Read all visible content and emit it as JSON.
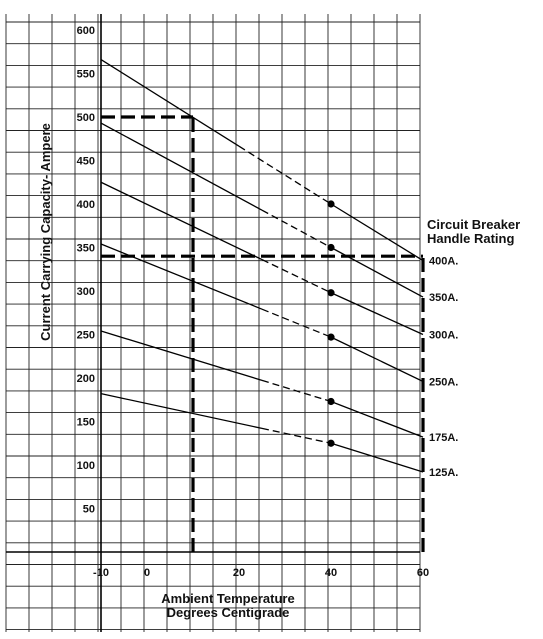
{
  "chart_data": {
    "type": "line",
    "xlabel_line1": "Ambient Temperature",
    "xlabel_line2": "Degrees Centigrade",
    "ylabel": "Current Carrying Capacity- Ampere",
    "legend_title_line1": "Circuit Breaker",
    "legend_title_line2": "Handle Rating",
    "x_ticks": [
      "-10",
      "0",
      "20",
      "40",
      "60"
    ],
    "x_tick_values": [
      -10,
      0,
      20,
      40,
      60
    ],
    "y_ticks": [
      "50",
      "100",
      "150",
      "200",
      "250",
      "300",
      "350",
      "400",
      "450",
      "500",
      "550",
      "600"
    ],
    "y_tick_values": [
      50,
      100,
      150,
      200,
      250,
      300,
      350,
      400,
      450,
      500,
      550,
      600
    ],
    "xlim": [
      -10,
      60
    ],
    "ylim": [
      0,
      620
    ],
    "grid": true,
    "series": [
      {
        "name": "400A.",
        "x": [
          -10,
          40,
          60
        ],
        "y": [
          566,
          400,
          335
        ],
        "dashed_from_x": 20
      },
      {
        "name": "350A.",
        "x": [
          -10,
          40,
          60
        ],
        "y": [
          493,
          350,
          293
        ],
        "dashed_from_x": 25
      },
      {
        "name": "300A.",
        "x": [
          -10,
          40,
          60
        ],
        "y": [
          425,
          298,
          250
        ],
        "dashed_from_x": 25
      },
      {
        "name": "250A.",
        "x": [
          -10,
          40,
          60
        ],
        "y": [
          354,
          247,
          196
        ],
        "dashed_from_x": 25
      },
      {
        "name": "175A.",
        "x": [
          -10,
          40,
          60
        ],
        "y": [
          254,
          173,
          132
        ],
        "dashed_from_x": 25
      },
      {
        "name": "125A.",
        "x": [
          -10,
          40,
          60
        ],
        "y": [
          182,
          125,
          92
        ],
        "dashed_from_x": 25
      }
    ],
    "markers": [
      {
        "x": 40,
        "y": 400
      },
      {
        "x": 40,
        "y": 350
      },
      {
        "x": 40,
        "y": 298
      },
      {
        "x": 40,
        "y": 247
      },
      {
        "x": 40,
        "y": 173
      },
      {
        "x": 40,
        "y": 125
      }
    ],
    "reference_lines": [
      {
        "axis": "y",
        "value": 500,
        "from": -10,
        "to": 10
      },
      {
        "axis": "x",
        "value": 10,
        "from": 0,
        "to": 500
      },
      {
        "axis": "y",
        "value": 340,
        "from": -10,
        "to": 60
      },
      {
        "axis": "x",
        "value": 60,
        "from": 0,
        "to": 340
      }
    ]
  }
}
